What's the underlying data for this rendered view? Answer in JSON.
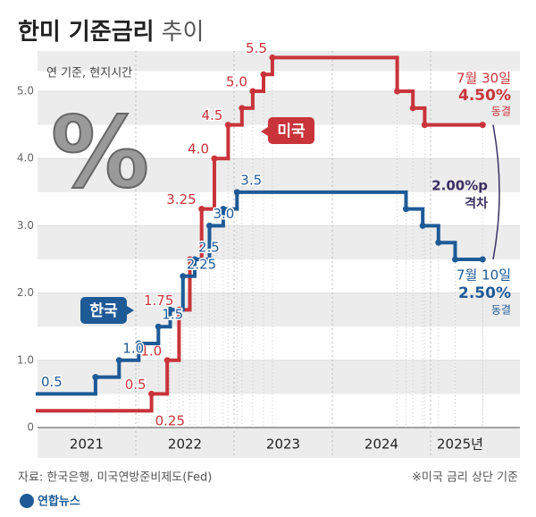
{
  "chart_data": {
    "type": "step",
    "title": {
      "main": "한미 기준금리",
      "light": "추이"
    },
    "subtitle": "연 기준, 현지시간",
    "icon_text": "%",
    "ylim": [
      0,
      5.6
    ],
    "yticks": [
      0,
      {
        "value": 1,
        "label": "1.0"
      },
      {
        "value": 2,
        "label": "2.0"
      },
      {
        "value": 3,
        "label": "3.0"
      },
      {
        "value": 4,
        "label": "4.0"
      },
      {
        "value": 5,
        "label": "5.0"
      }
    ],
    "xlim": [
      2021,
      2025.6
    ],
    "xticks": [
      {
        "value": 2021.5,
        "label": "2021"
      },
      {
        "value": 2022.5,
        "label": "2022"
      },
      {
        "value": 2023.5,
        "label": "2023"
      },
      {
        "value": 2024.5,
        "label": "2024"
      },
      {
        "value": 2025.3,
        "label": "2025년"
      }
    ],
    "series": [
      {
        "name": "미국",
        "color": "#c8343a",
        "x": [
          2021.0,
          2022.16,
          2022.32,
          2022.44,
          2022.55,
          2022.67,
          2022.8,
          2022.94,
          2023.08,
          2023.19,
          2023.3,
          2023.39,
          2024.66,
          2024.82,
          2024.94,
          2025.53
        ],
        "values": [
          0.25,
          0.5,
          1.0,
          1.75,
          2.5,
          3.25,
          4.0,
          4.5,
          4.75,
          5.0,
          5.25,
          5.5,
          5.0,
          4.75,
          4.5,
          4.5
        ],
        "value_labels": [
          "0.25",
          "0.5",
          "1.0",
          "1.75",
          null,
          "3.25",
          "4.0",
          "4.5",
          null,
          "5.0",
          null,
          "5.5",
          null,
          null,
          null,
          null
        ]
      },
      {
        "name": "한국",
        "color": "#1e5a96",
        "x": [
          2021.0,
          2021.59,
          2021.83,
          2022.03,
          2022.23,
          2022.35,
          2022.48,
          2022.6,
          2022.75,
          2022.89,
          2023.03,
          2024.75,
          2024.92,
          2025.08,
          2025.25,
          2025.53
        ],
        "values": [
          0.5,
          0.75,
          1.0,
          1.25,
          1.5,
          1.75,
          2.25,
          2.5,
          3.0,
          3.25,
          3.5,
          3.25,
          3.0,
          2.75,
          2.5,
          2.5
        ],
        "value_labels": [
          "0.5",
          null,
          "1.0",
          null,
          "1.5",
          null,
          "2.25",
          "2.5",
          "3.0",
          null,
          "3.5",
          null,
          null,
          null,
          null,
          null
        ]
      }
    ],
    "annotations": {
      "us_date": "7월 30일",
      "us_rate": "4.50%",
      "us_status": "동결",
      "gap": "2.00%p",
      "gap_label": "격차",
      "kr_date": "7월 10일",
      "kr_rate": "2.50%",
      "kr_status": "동결"
    },
    "source": "자료: 한국은행, 미국연방준비제도(Fed)",
    "note": "※미국 금리 상단 기준",
    "logo": "연합뉴스"
  }
}
